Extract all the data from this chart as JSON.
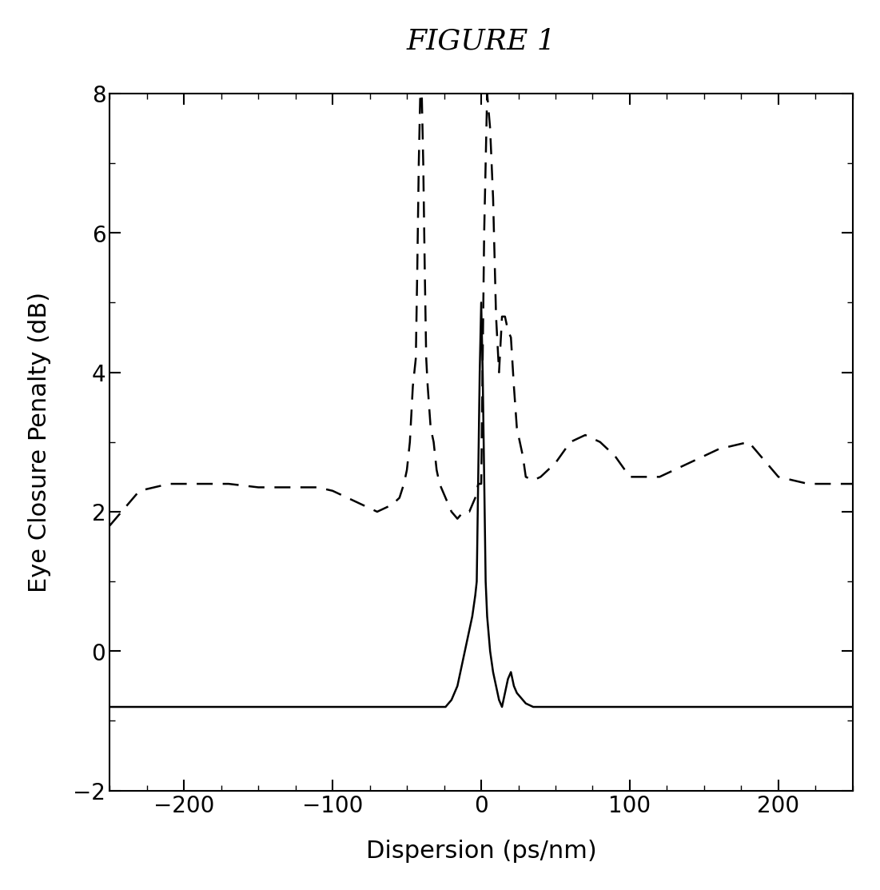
{
  "title": "FIGURE 1",
  "xlabel": "Dispersion (ps/nm)",
  "ylabel": "Eye Closure Penalty (dB)",
  "xlim": [
    -250,
    250
  ],
  "ylim": [
    -2,
    8
  ],
  "xticks": [
    -200,
    -100,
    0,
    100,
    200
  ],
  "yticks": [
    -2,
    0,
    2,
    4,
    6,
    8
  ],
  "background_color": "#ffffff",
  "solid_x": [
    -250,
    -230,
    -210,
    -190,
    -170,
    -150,
    -130,
    -110,
    -100,
    -90,
    -80,
    -70,
    -60,
    -50,
    -45,
    -42,
    -40,
    -38,
    -36,
    -34,
    -32,
    -30,
    -28,
    -26,
    -24,
    -22,
    -20,
    -18,
    -16,
    -14,
    -12,
    -10,
    -8,
    -6,
    -4,
    -3,
    -2,
    -1,
    0,
    1,
    2,
    3,
    4,
    6,
    8,
    10,
    12,
    14,
    16,
    18,
    20,
    22,
    24,
    26,
    28,
    30,
    35,
    40,
    45,
    50,
    60,
    70,
    80,
    90,
    100,
    120,
    140,
    160,
    180,
    200,
    220,
    240,
    250
  ],
  "solid_y": [
    -0.8,
    -0.8,
    -0.8,
    -0.8,
    -0.8,
    -0.8,
    -0.8,
    -0.8,
    -0.8,
    -0.8,
    -0.8,
    -0.8,
    -0.8,
    -0.8,
    -0.8,
    -0.8,
    -0.8,
    -0.8,
    -0.8,
    -0.8,
    -0.8,
    -0.8,
    -0.8,
    -0.8,
    -0.8,
    -0.75,
    -0.7,
    -0.6,
    -0.5,
    -0.3,
    -0.1,
    0.1,
    0.3,
    0.5,
    0.8,
    1.0,
    2.5,
    4.0,
    5.0,
    4.0,
    2.5,
    1.0,
    0.5,
    0.0,
    -0.3,
    -0.5,
    -0.7,
    -0.8,
    -0.6,
    -0.4,
    -0.3,
    -0.5,
    -0.6,
    -0.65,
    -0.7,
    -0.75,
    -0.8,
    -0.8,
    -0.8,
    -0.8,
    -0.8,
    -0.8,
    -0.8,
    -0.8,
    -0.8,
    -0.8,
    -0.8,
    -0.8,
    -0.8,
    -0.8,
    -0.8,
    -0.8,
    -0.8
  ],
  "dashed_x": [
    -250,
    -230,
    -210,
    -190,
    -170,
    -150,
    -130,
    -110,
    -100,
    -90,
    -80,
    -70,
    -60,
    -55,
    -52,
    -50,
    -48,
    -46,
    -44,
    -43,
    -42,
    -41,
    -40,
    -39,
    -38,
    -37,
    -36,
    -35,
    -34,
    -32,
    -30,
    -28,
    -26,
    -24,
    -22,
    -20,
    -18,
    -16,
    -14,
    -12,
    -10,
    -8,
    -6,
    -4,
    -2,
    0,
    2,
    4,
    6,
    8,
    10,
    12,
    14,
    16,
    18,
    20,
    22,
    24,
    26,
    28,
    30,
    35,
    40,
    50,
    60,
    70,
    80,
    90,
    100,
    120,
    140,
    160,
    180,
    200,
    220,
    240,
    250
  ],
  "dashed_y": [
    1.8,
    2.3,
    2.4,
    2.4,
    2.4,
    2.35,
    2.35,
    2.35,
    2.3,
    2.2,
    2.1,
    2.0,
    2.1,
    2.2,
    2.4,
    2.6,
    3.0,
    3.8,
    4.2,
    5.5,
    7.0,
    8.0,
    8.0,
    7.0,
    5.5,
    4.2,
    3.8,
    3.5,
    3.2,
    3.0,
    2.6,
    2.4,
    2.3,
    2.2,
    2.1,
    2.0,
    1.95,
    1.9,
    1.95,
    2.0,
    2.0,
    2.0,
    2.1,
    2.2,
    2.4,
    2.4,
    6.0,
    8.0,
    7.5,
    6.5,
    4.8,
    4.0,
    4.8,
    4.8,
    4.6,
    4.5,
    3.8,
    3.2,
    3.0,
    2.8,
    2.5,
    2.45,
    2.5,
    2.7,
    3.0,
    3.1,
    3.0,
    2.8,
    2.5,
    2.5,
    2.7,
    2.9,
    3.0,
    2.5,
    2.4,
    2.4,
    2.4
  ]
}
